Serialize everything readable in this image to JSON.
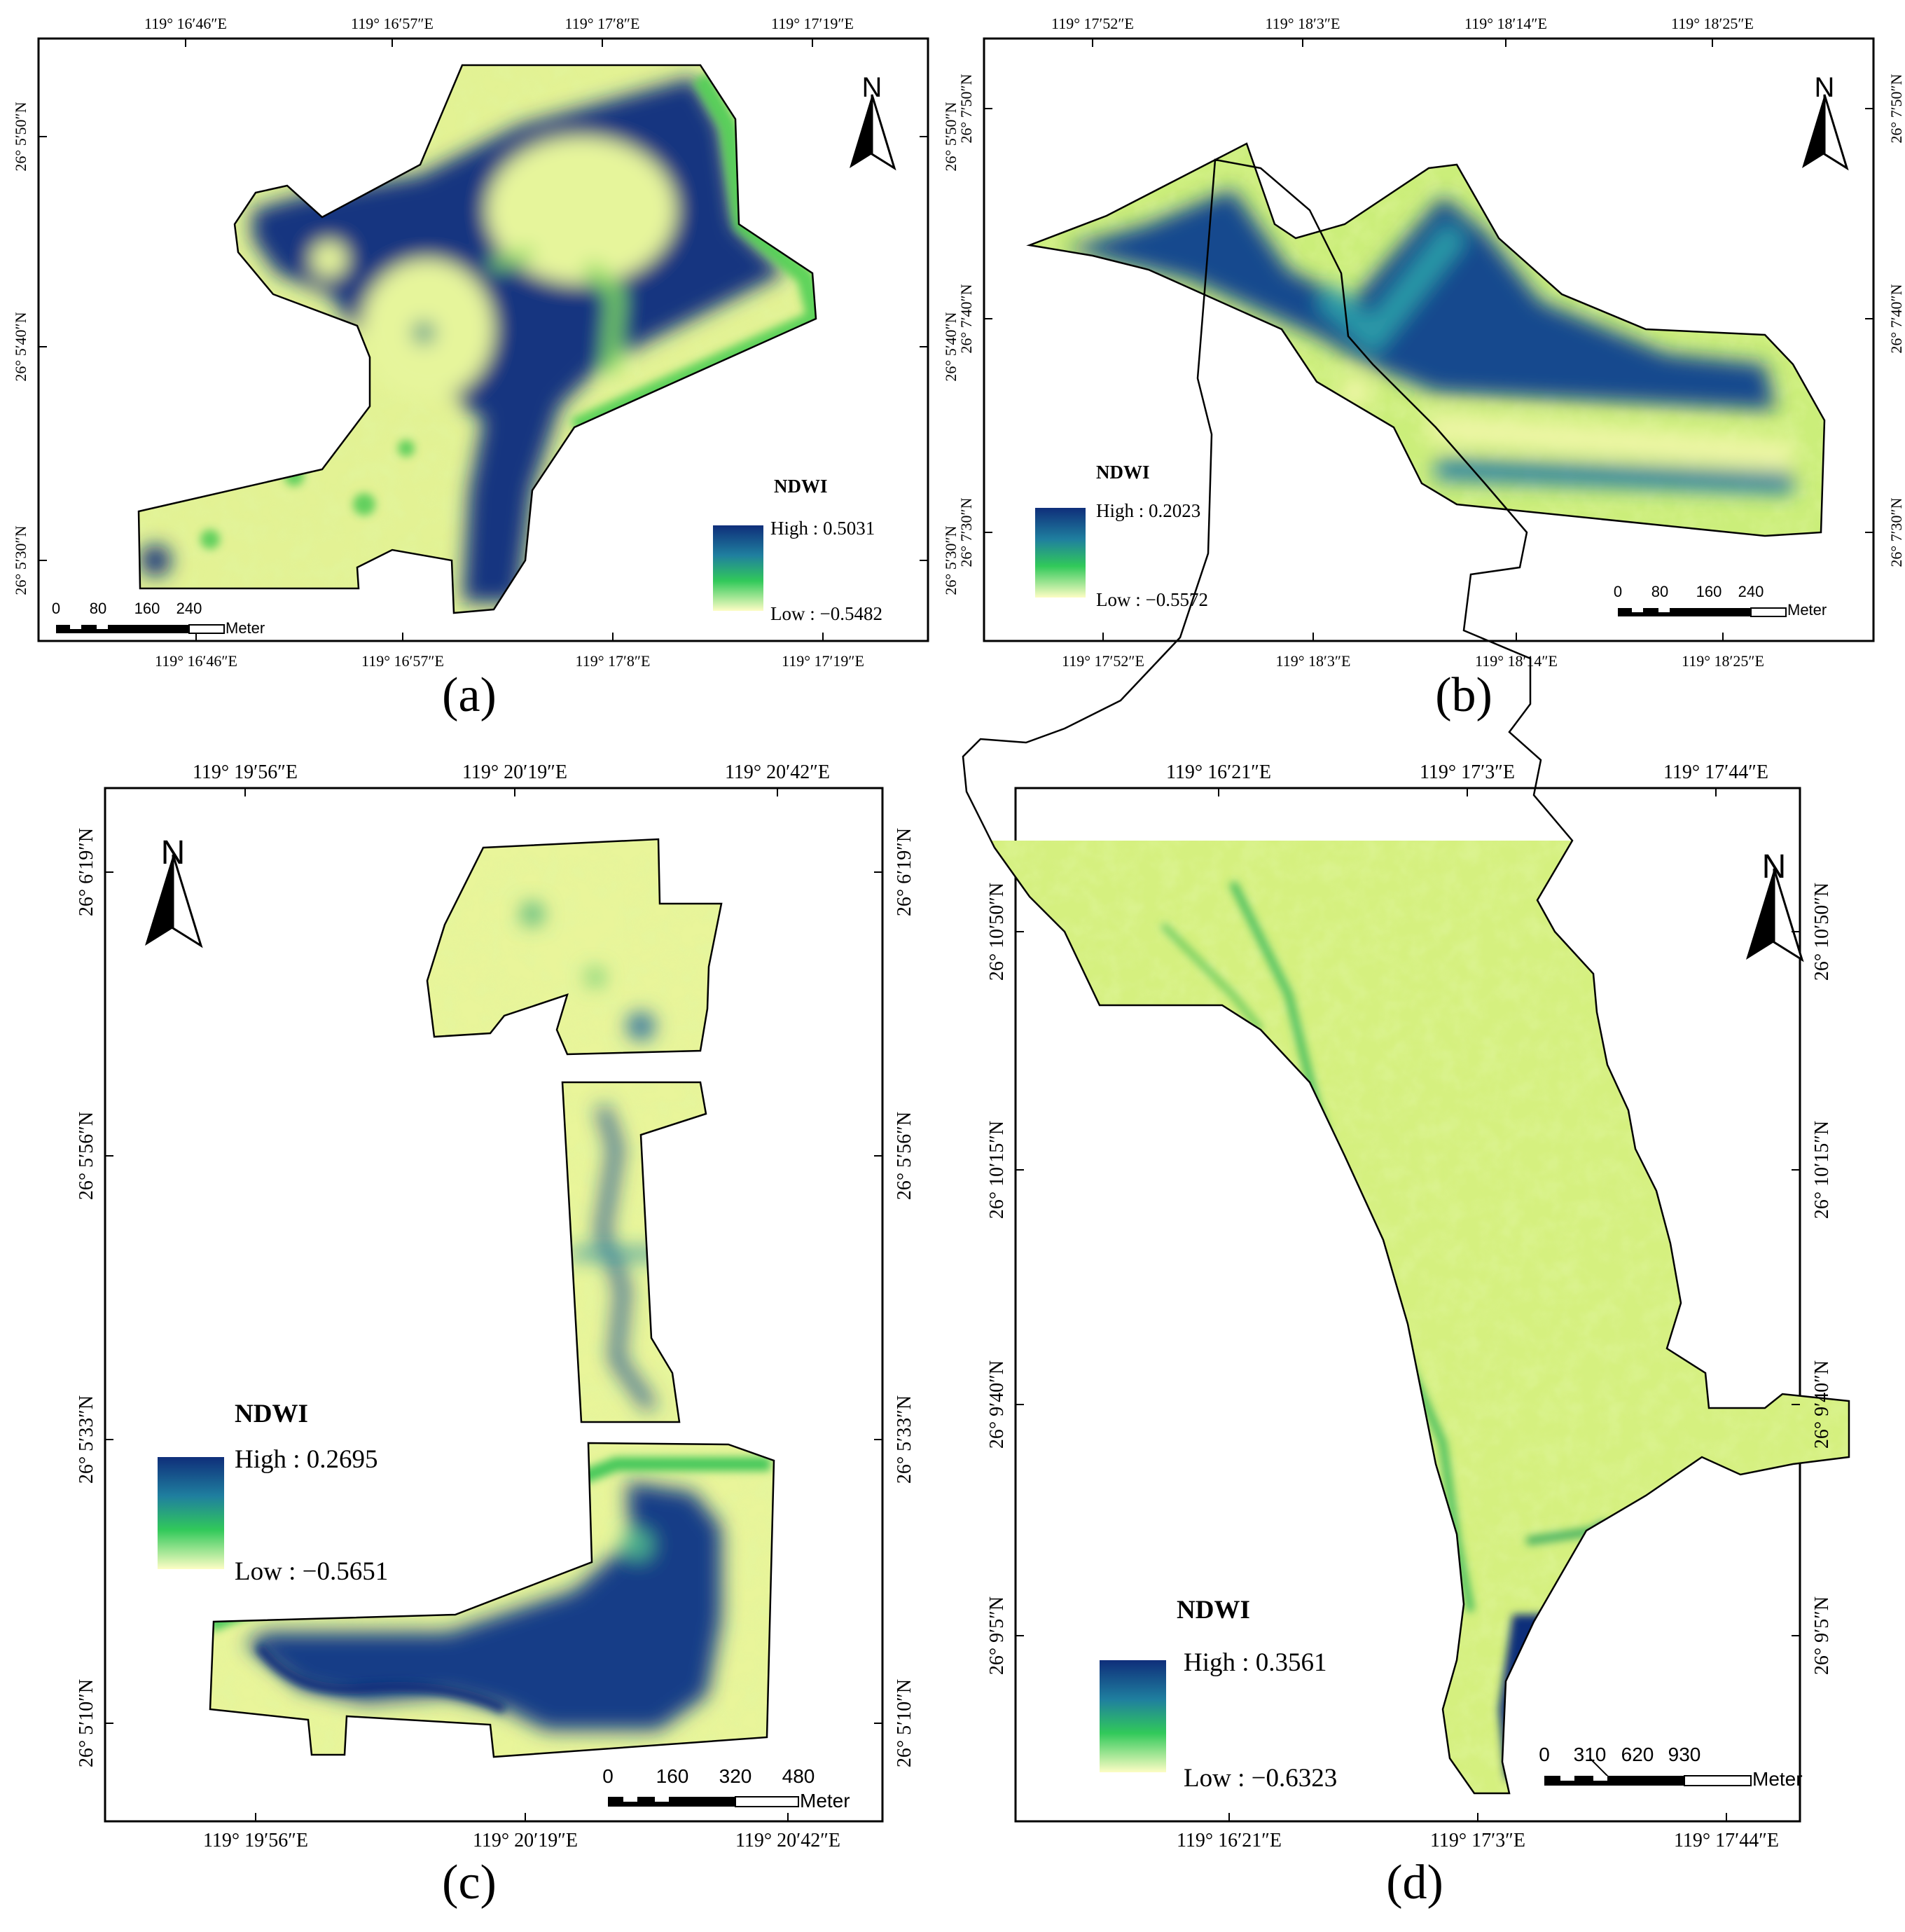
{
  "colors": {
    "ndwi_high": "#0f2e7a",
    "ndwi_mid_high": "#1f7f9f",
    "ndwi_mid": "#31c95a",
    "ndwi_low": "#fdfdc4",
    "land_light": "#e9f59a",
    "land_mid": "#bfe96e"
  },
  "north_label": "N",
  "scale_unit": "Meter",
  "legend_title": "NDWI",
  "panels": [
    {
      "label": "(a)",
      "top_ticks": [
        "119° 16′46″E",
        "119° 16′57″E",
        "119° 17′8″E",
        "119° 17′19″E"
      ],
      "bottom_ticks": [
        "119° 16′46″E",
        "119° 16′57″E",
        "119° 17′8″E",
        "119° 17′19″E"
      ],
      "left_ticks": [
        "26° 5′50″N",
        "26° 5′40″N",
        "26° 5′30″N"
      ],
      "right_ticks": [
        "26° 5′50″N",
        "26° 5′40″N",
        "26° 5′30″N"
      ],
      "legend_high": "High : 0.5031",
      "legend_low": "Low : −0.5482",
      "scale_ticks": [
        "0",
        "80",
        "160",
        "240"
      ]
    },
    {
      "label": "(b)",
      "top_ticks": [
        "119° 17′52″E",
        "119° 18′3″E",
        "119° 18′14″E",
        "119° 18′25″E"
      ],
      "bottom_ticks": [
        "119° 17′52″E",
        "119° 18′3″E",
        "119° 18′14″E",
        "119° 18′25″E"
      ],
      "left_ticks": [
        "26° 7′50″N",
        "26° 7′40″N",
        "26° 7′30″N"
      ],
      "right_ticks": [
        "26° 7′50″N",
        "26° 7′40″N",
        "26° 7′30″N"
      ],
      "legend_high": "High : 0.2023",
      "legend_low": "Low : −0.5572",
      "scale_ticks": [
        "0",
        "80",
        "160",
        "240"
      ]
    },
    {
      "label": "(c)",
      "top_ticks": [
        "119° 19′56″E",
        "119° 20′19″E",
        "119° 20′42″E"
      ],
      "bottom_ticks": [
        "119° 19′56″E",
        "119° 20′19″E",
        "119° 20′42″E"
      ],
      "left_ticks": [
        "26° 6′19″N",
        "26° 5′56″N",
        "26° 5′33″N",
        "26° 5′10″N"
      ],
      "right_ticks": [
        "26° 6′19″N",
        "26° 5′56″N",
        "26° 5′33″N",
        "26° 5′10″N"
      ],
      "legend_high": "High : 0.2695",
      "legend_low": "Low : −0.5651",
      "scale_ticks": [
        "0",
        "160",
        "320",
        "480"
      ]
    },
    {
      "label": "(d)",
      "top_ticks": [
        "119° 16′21″E",
        "119° 17′3″E",
        "119° 17′44″E"
      ],
      "bottom_ticks": [
        "119° 16′21″E",
        "119° 17′3″E",
        "119° 17′44″E"
      ],
      "left_ticks": [
        "26° 10′50″N",
        "26° 10′15″N",
        "26° 9′40″N",
        "26° 9′5″N"
      ],
      "right_ticks": [
        "26° 10′50″N",
        "26° 10′15″N",
        "26° 9′40″N",
        "26° 9′5″N"
      ],
      "legend_high": "High : 0.3561",
      "legend_low": "Low : −0.6323",
      "scale_ticks": [
        "0",
        "310",
        "620",
        "930"
      ]
    }
  ]
}
